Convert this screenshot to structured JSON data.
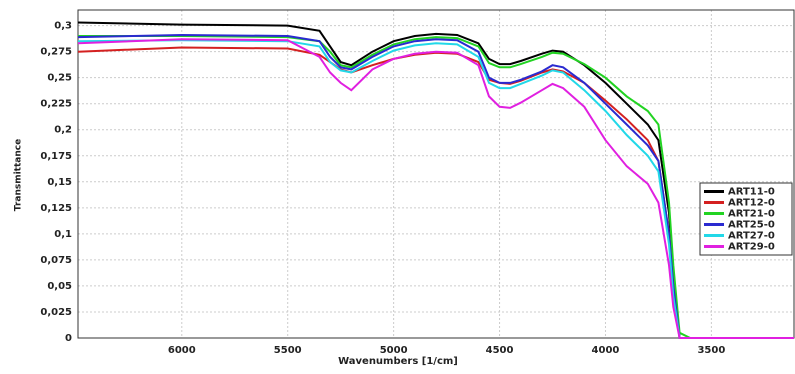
{
  "chart_data": {
    "type": "line",
    "xlabel": "Wavenumbers [1/cm]",
    "ylabel": "Transmittance",
    "x": [
      6490,
      6000,
      5500,
      5350,
      5300,
      5250,
      5200,
      5100,
      5000,
      4900,
      4800,
      4700,
      4600,
      4550,
      4500,
      4450,
      4400,
      4300,
      4250,
      4200,
      4100,
      4000,
      3900,
      3800,
      3750,
      3700,
      3680,
      3650,
      3600,
      3500,
      3110
    ],
    "series": [
      {
        "name": "ART11-0",
        "color": "#000000",
        "values": [
          0.303,
          0.301,
          0.3,
          0.295,
          0.28,
          0.265,
          0.262,
          0.275,
          0.285,
          0.29,
          0.292,
          0.291,
          0.283,
          0.268,
          0.263,
          0.263,
          0.266,
          0.273,
          0.276,
          0.275,
          0.262,
          0.245,
          0.225,
          0.205,
          0.19,
          0.12,
          0.06,
          0,
          0,
          0,
          0
        ]
      },
      {
        "name": "ART12-0",
        "color": "#d42020",
        "values": [
          0.275,
          0.279,
          0.278,
          0.272,
          0.265,
          0.258,
          0.255,
          0.262,
          0.268,
          0.272,
          0.274,
          0.273,
          0.265,
          0.248,
          0.245,
          0.244,
          0.247,
          0.255,
          0.258,
          0.256,
          0.245,
          0.228,
          0.21,
          0.19,
          0.17,
          0.1,
          0.05,
          0,
          0,
          0,
          0
        ]
      },
      {
        "name": "ART21-0",
        "color": "#22d322",
        "values": [
          0.29,
          0.29,
          0.289,
          0.285,
          0.275,
          0.262,
          0.26,
          0.272,
          0.282,
          0.287,
          0.289,
          0.288,
          0.28,
          0.264,
          0.26,
          0.26,
          0.263,
          0.27,
          0.274,
          0.273,
          0.263,
          0.25,
          0.232,
          0.218,
          0.205,
          0.13,
          0.07,
          0.005,
          0,
          0,
          0
        ]
      },
      {
        "name": "ART25-0",
        "color": "#2a2ad0",
        "values": [
          0.289,
          0.291,
          0.29,
          0.285,
          0.27,
          0.26,
          0.258,
          0.27,
          0.28,
          0.285,
          0.287,
          0.286,
          0.275,
          0.25,
          0.245,
          0.245,
          0.248,
          0.256,
          0.262,
          0.26,
          0.245,
          0.225,
          0.205,
          0.185,
          0.17,
          0.1,
          0.05,
          0,
          0,
          0,
          0
        ]
      },
      {
        "name": "ART27-0",
        "color": "#22d8e8",
        "values": [
          0.285,
          0.286,
          0.285,
          0.28,
          0.265,
          0.257,
          0.255,
          0.266,
          0.276,
          0.281,
          0.283,
          0.282,
          0.27,
          0.245,
          0.24,
          0.24,
          0.244,
          0.252,
          0.257,
          0.255,
          0.238,
          0.218,
          0.195,
          0.175,
          0.16,
          0.09,
          0.04,
          0,
          0,
          0,
          0
        ]
      },
      {
        "name": "ART29-0",
        "color": "#e020e0",
        "values": [
          0.283,
          0.287,
          0.286,
          0.27,
          0.255,
          0.245,
          0.238,
          0.258,
          0.268,
          0.273,
          0.275,
          0.274,
          0.262,
          0.232,
          0.222,
          0.221,
          0.226,
          0.238,
          0.244,
          0.24,
          0.222,
          0.19,
          0.165,
          0.148,
          0.13,
          0.07,
          0.03,
          0,
          0,
          0,
          0
        ]
      }
    ],
    "xlim": [
      6490,
      3110
    ],
    "xticks": [
      6000,
      5500,
      5000,
      4500,
      4000,
      3500
    ],
    "ylim": [
      0,
      0.315
    ],
    "yticks": [
      0,
      {
        "value": 0.025,
        "label": "0,025"
      },
      {
        "value": 0.05,
        "label": "0,05"
      },
      {
        "value": 0.075,
        "label": "0,075"
      },
      {
        "value": 0.1,
        "label": "0,1"
      },
      {
        "value": 0.125,
        "label": "0,125"
      },
      {
        "value": 0.15,
        "label": "0,15"
      },
      {
        "value": 0.175,
        "label": "0,175"
      },
      {
        "value": 0.2,
        "label": "0,2"
      },
      {
        "value": 0.225,
        "label": "0,225"
      },
      {
        "value": 0.25,
        "label": "0,25"
      },
      {
        "value": 0.275,
        "label": "0,275"
      },
      {
        "value": 0.3,
        "label": "0,3"
      }
    ],
    "grid": true,
    "legend": "right"
  }
}
